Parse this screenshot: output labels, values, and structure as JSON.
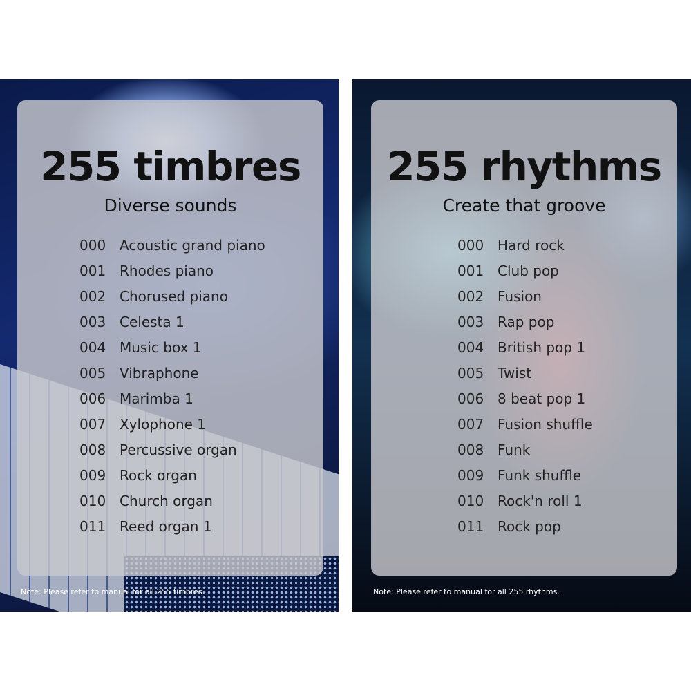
{
  "left": {
    "title": "255 timbres",
    "subtitle": "Diverse sounds",
    "items": [
      {
        "num": "000",
        "name": "Acoustic grand piano"
      },
      {
        "num": "001",
        "name": "Rhodes piano"
      },
      {
        "num": "002",
        "name": "Chorused piano"
      },
      {
        "num": "003",
        "name": "Celesta 1"
      },
      {
        "num": "004",
        "name": "Music box 1"
      },
      {
        "num": "005",
        "name": "Vibraphone"
      },
      {
        "num": "006",
        "name": "Marimba 1"
      },
      {
        "num": "007",
        "name": "Xylophone 1"
      },
      {
        "num": "008",
        "name": "Percussive organ"
      },
      {
        "num": "009",
        "name": "Rock organ"
      },
      {
        "num": "010",
        "name": "Church organ"
      },
      {
        "num": "011",
        "name": "Reed organ 1"
      }
    ],
    "note": "Note: Please refer to manual for all 255 timbres."
  },
  "right": {
    "title": "255 rhythms",
    "subtitle": "Create that groove",
    "items": [
      {
        "num": "000",
        "name": "Hard rock"
      },
      {
        "num": "001",
        "name": "Club pop"
      },
      {
        "num": "002",
        "name": "Fusion"
      },
      {
        "num": "003",
        "name": "Rap pop"
      },
      {
        "num": "004",
        "name": "British pop 1"
      },
      {
        "num": "005",
        "name": "Twist"
      },
      {
        "num": "006",
        "name": "8 beat pop 1"
      },
      {
        "num": "007",
        "name": "Fusion shuffle"
      },
      {
        "num": "008",
        "name": "Funk"
      },
      {
        "num": "009",
        "name": "Funk shuffle"
      },
      {
        "num": "010",
        "name": "Rock'n roll 1"
      },
      {
        "num": "011",
        "name": "Rock pop"
      }
    ],
    "note": "Note: Please refer to manual for all 255 rhythms."
  }
}
